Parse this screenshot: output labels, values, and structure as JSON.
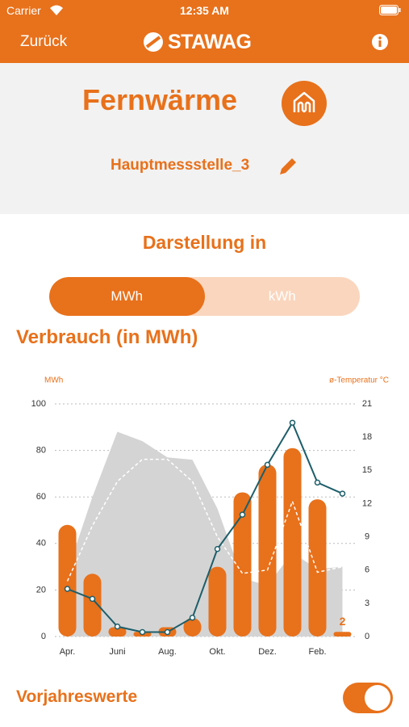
{
  "status_bar": {
    "carrier": "Carrier",
    "time": "12:35 AM"
  },
  "nav": {
    "back": "Zurück",
    "logo": "STAWAG"
  },
  "header": {
    "title": "Fernwärme",
    "meter": "Hauptmessstelle_3"
  },
  "unit_switch": {
    "label": "Darstellung in",
    "options": [
      "MWh",
      "kWh"
    ],
    "selected": 0
  },
  "section_title": "Verbrauch (in MWh)",
  "chart_data": {
    "type": "combo",
    "y_label": "MWh",
    "y2_label": "ø-Temperatur °C",
    "categories": [
      "Apr.",
      null,
      "Juni",
      null,
      "Aug.",
      null,
      "Okt.",
      null,
      "Dez.",
      null,
      "Feb.",
      null
    ],
    "ylim": [
      0,
      100
    ],
    "yticks": [
      0,
      20,
      40,
      60,
      80,
      100
    ],
    "y2lim": [
      0,
      21
    ],
    "y2ticks": [
      0,
      3,
      6,
      9,
      12,
      15,
      18,
      21
    ],
    "grid": true,
    "series": [
      {
        "type": "area",
        "color": "#d4d4d4",
        "values": [
          28,
          60,
          88,
          84,
          77,
          76,
          55,
          25,
          22,
          36,
          29,
          30
        ]
      },
      {
        "type": "bar",
        "color": "#e8711b",
        "values": [
          48,
          27,
          4,
          2,
          4,
          8,
          30,
          62,
          74,
          81,
          59,
          2
        ],
        "value_labels": [
          null,
          null,
          null,
          null,
          null,
          null,
          null,
          null,
          null,
          null,
          null,
          "2"
        ]
      },
      {
        "type": "dashed",
        "axis": "y2",
        "color": "#ffffff",
        "values": [
          5,
          10,
          14,
          16,
          16,
          14,
          9,
          5.7,
          6,
          12.2,
          5.8,
          6.3
        ]
      },
      {
        "type": "line",
        "axis": "y2",
        "color": "#1d5e6a",
        "values": [
          4.3,
          3.4,
          0.9,
          0.4,
          0.4,
          1.7,
          7.9,
          11,
          15.5,
          19.3,
          13.9,
          12.9
        ]
      }
    ]
  },
  "footer": {
    "label": "Vorjahreswerte",
    "on": true
  }
}
